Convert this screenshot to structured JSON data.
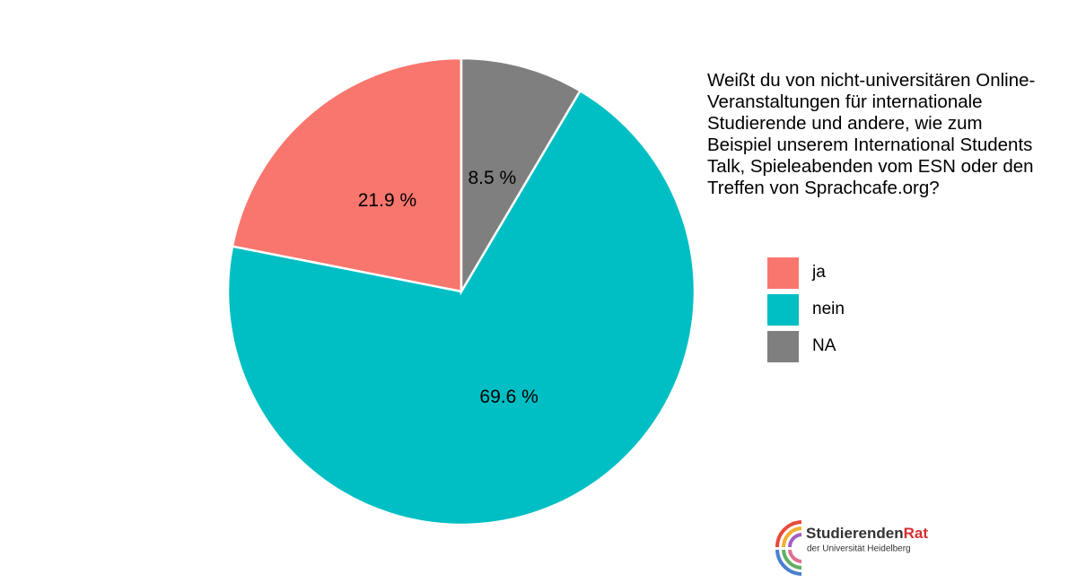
{
  "chart_data": {
    "type": "pie",
    "title": "Weißt du von nicht-universitären Online-Veranstaltungen für internationale Studierende und andere, wie zum Beispiel unserem International Students Talk, Spieleabenden vom ESN oder den Treffen von Sprachcafe.org?",
    "categories": [
      "ja",
      "nein",
      "NA"
    ],
    "values": [
      21.9,
      69.6,
      8.5
    ],
    "value_labels": [
      "21.9 %",
      "69.6 %",
      "8.5 %"
    ],
    "colors": [
      "#f8766d",
      "#00bfc4",
      "#7f7f7f"
    ],
    "legend": "right"
  },
  "logo": {
    "name_main": "Studierenden",
    "name_accent": "Rat",
    "subtitle": "der Universität Heidelberg"
  }
}
